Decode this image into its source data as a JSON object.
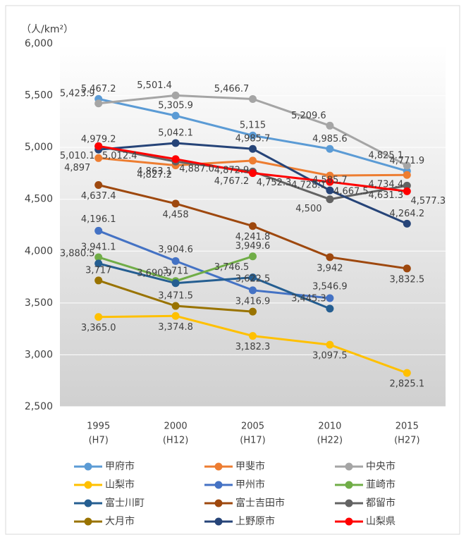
{
  "chart_data": {
    "type": "line",
    "y_axis_label": "（人/km²）",
    "categories": [
      [
        "1995",
        "(H7)"
      ],
      [
        "2000",
        "(H12)"
      ],
      [
        "2005",
        "(H17)"
      ],
      [
        "2010",
        "(H22)"
      ],
      [
        "2015",
        "(H27)"
      ]
    ],
    "ylim": [
      2500,
      6000
    ],
    "yticks": [
      {
        "value": 2500,
        "label": "2,500"
      },
      {
        "value": 3000,
        "label": "3,000"
      },
      {
        "value": 3500,
        "label": "3,500"
      },
      {
        "value": 4000,
        "label": "4,000"
      },
      {
        "value": 4500,
        "label": "4,500"
      },
      {
        "value": 5000,
        "label": "5,000"
      },
      {
        "value": 5500,
        "label": "5,500"
      },
      {
        "value": 6000,
        "label": "6,000"
      }
    ],
    "grid": true,
    "series": [
      {
        "name": "甲府市",
        "color": "#5b9bd5",
        "values": [
          5467.2,
          5305.9,
          5115,
          4985.6,
          4771.9
        ],
        "value_labels": [
          "5,467.2",
          "5,305.9",
          "5,115",
          "4,985.6",
          "4,771.9"
        ]
      },
      {
        "name": "甲斐市",
        "color": "#ed7d31",
        "values": [
          4897,
          4827.2,
          4872.9,
          4728.1,
          4734.4
        ],
        "value_labels": [
          "4,897",
          "4,827.2",
          "4,872.9",
          "4,728.1",
          "4,734.4"
        ]
      },
      {
        "name": "中央市",
        "color": "#a5a5a5",
        "values": [
          5423.9,
          5501.4,
          5466.7,
          5209.6,
          4825.1
        ],
        "value_labels": [
          "5,423.9",
          "5,501.4",
          "5,466.7",
          "5,209.6",
          "4,825.1"
        ]
      },
      {
        "name": "山梨市",
        "color": "#ffc000",
        "values": [
          3365.0,
          3374.8,
          3182.3,
          3097.5,
          2825.1
        ],
        "value_labels": [
          "3,365.0",
          "3,374.8",
          "3,182.3",
          "3,097.5",
          "2,825.1"
        ]
      },
      {
        "name": "甲州市",
        "color": "#4472c4",
        "values": [
          4196.1,
          3904.6,
          3622.5,
          3546.9,
          null
        ],
        "value_labels": [
          "4,196.1",
          "3,904.6",
          "3,622.5",
          "3,546.9",
          null
        ]
      },
      {
        "name": "韮崎市",
        "color": "#70ad47",
        "values": [
          3941.1,
          3711,
          3949.6,
          null,
          null
        ],
        "value_labels": [
          "3,941.1",
          "3,711",
          "3,949.6",
          null,
          null
        ]
      },
      {
        "name": "富士川町",
        "color": "#255e91",
        "values": [
          3880.5,
          3690.9,
          3746.5,
          3445.3,
          null
        ],
        "value_labels": [
          "3,880.5",
          "3,690.9",
          "3,746.5",
          "3,445.3",
          null
        ]
      },
      {
        "name": "富士吉田市",
        "color": "#9e480e",
        "values": [
          4637.4,
          4458,
          4241.8,
          3942,
          3832.5
        ],
        "value_labels": [
          "4,637.4",
          "4,458",
          "4,241.8",
          "3,942",
          "3,832.5"
        ]
      },
      {
        "name": "都留市",
        "color": "#636363",
        "values": [
          5010.1,
          4863.1,
          4767.2,
          4500,
          4631.3
        ],
        "value_labels": [
          "5,010.1",
          "4,863.1",
          "4,767.2",
          "4,500",
          "4,631.3"
        ]
      },
      {
        "name": "大月市",
        "color": "#997300",
        "values": [
          3717,
          3471.5,
          3416.9,
          null,
          null
        ],
        "value_labels": [
          "3,717",
          "3,471.5",
          "3,416.9",
          null,
          null
        ]
      },
      {
        "name": "上野原市",
        "color": "#264478",
        "values": [
          4979.2,
          5042.1,
          4985.7,
          4585.7,
          4264.2
        ],
        "value_labels": [
          "4,979.2",
          "5,042.1",
          "4,985.7",
          "4,585.7",
          "4,264.2"
        ]
      },
      {
        "name": "山梨県",
        "color": "#ff0000",
        "values": [
          5012.4,
          4887.0,
          4752.3,
          4667.5,
          4577.3
        ],
        "value_labels": [
          "5,012.4",
          "4,887.0",
          "4,752.3",
          "4,667.5",
          "4,577.3"
        ]
      }
    ]
  }
}
